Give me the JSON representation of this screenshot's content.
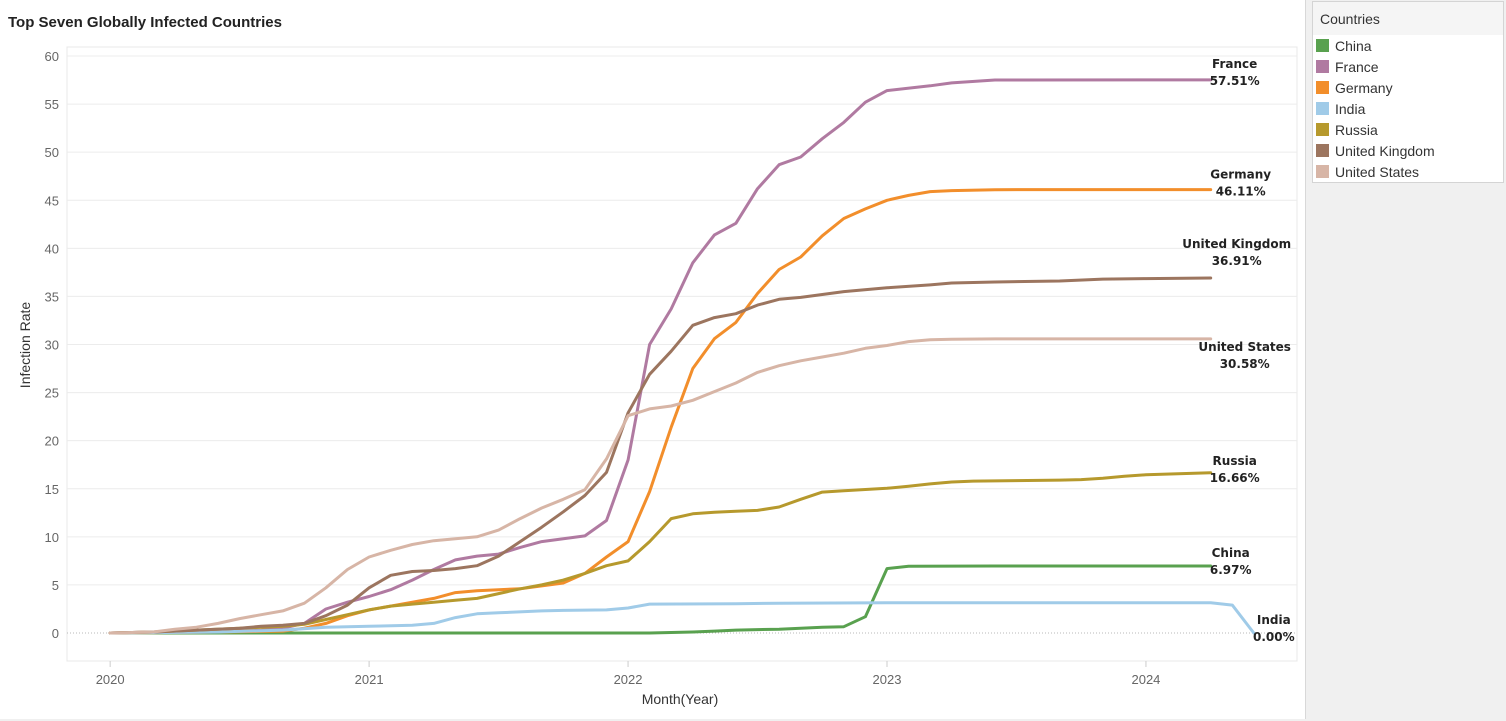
{
  "chart_data": {
    "type": "line",
    "title": "Top Seven Globally Infected Countries",
    "xlabel": "Month(Year)",
    "ylabel": "Infection Rate",
    "ylim": [
      0,
      60
    ],
    "yticks": [
      0,
      5,
      10,
      15,
      20,
      25,
      30,
      35,
      40,
      45,
      50,
      55,
      60
    ],
    "xticks": [
      "2020",
      "2021",
      "2022",
      "2023",
      "2024"
    ],
    "xlim": [
      "2019-11",
      "2024-08"
    ],
    "grid": "horizontal",
    "legend_position": "right",
    "legend_title": "Countries",
    "series": [
      {
        "name": "China",
        "color": "#59a14f",
        "end_label": "China",
        "end_value": "6.97%",
        "points": [
          [
            "2020-01",
            0
          ],
          [
            "2020-06",
            0
          ],
          [
            "2021-01",
            0
          ],
          [
            "2021-06",
            0
          ],
          [
            "2022-01",
            0
          ],
          [
            "2022-02",
            0
          ],
          [
            "2022-03",
            0.05
          ],
          [
            "2022-04",
            0.1
          ],
          [
            "2022-05",
            0.2
          ],
          [
            "2022-06",
            0.3
          ],
          [
            "2022-07",
            0.35
          ],
          [
            "2022-08",
            0.4
          ],
          [
            "2022-09",
            0.5
          ],
          [
            "2022-10",
            0.6
          ],
          [
            "2022-11",
            0.65
          ],
          [
            "2022-12",
            1.7
          ],
          [
            "2023-01",
            6.7
          ],
          [
            "2023-02",
            6.95
          ],
          [
            "2023-06",
            6.97
          ],
          [
            "2024-01",
            6.97
          ],
          [
            "2024-04",
            6.97
          ]
        ]
      },
      {
        "name": "France",
        "color": "#b07aa1",
        "end_label": "France",
        "end_value": "57.51%",
        "points": [
          [
            "2020-01",
            0
          ],
          [
            "2020-03",
            0.1
          ],
          [
            "2020-05",
            0.2
          ],
          [
            "2020-08",
            0.3
          ],
          [
            "2020-09",
            0.5
          ],
          [
            "2020-10",
            1
          ],
          [
            "2020-11",
            2.5
          ],
          [
            "2020-12",
            3.2
          ],
          [
            "2021-01",
            3.8
          ],
          [
            "2021-02",
            4.5
          ],
          [
            "2021-03",
            5.5
          ],
          [
            "2021-04",
            6.6
          ],
          [
            "2021-05",
            7.6
          ],
          [
            "2021-06",
            8
          ],
          [
            "2021-07",
            8.2
          ],
          [
            "2021-08",
            8.9
          ],
          [
            "2021-09",
            9.5
          ],
          [
            "2021-10",
            9.8
          ],
          [
            "2021-11",
            10.1
          ],
          [
            "2021-12",
            11.7
          ],
          [
            "2022-01",
            18
          ],
          [
            "2022-02",
            30
          ],
          [
            "2022-03",
            33.7
          ],
          [
            "2022-04",
            38.5
          ],
          [
            "2022-05",
            41.4
          ],
          [
            "2022-06",
            42.6
          ],
          [
            "2022-07",
            46.2
          ],
          [
            "2022-08",
            48.7
          ],
          [
            "2022-09",
            49.5
          ],
          [
            "2022-10",
            51.4
          ],
          [
            "2022-11",
            53.1
          ],
          [
            "2022-12",
            55.2
          ],
          [
            "2023-01",
            56.4
          ],
          [
            "2023-03",
            56.9
          ],
          [
            "2023-04",
            57.2
          ],
          [
            "2023-06",
            57.5
          ],
          [
            "2024-01",
            57.51
          ],
          [
            "2024-04",
            57.51
          ]
        ]
      },
      {
        "name": "Germany",
        "color": "#f28e2b",
        "end_label": "Germany",
        "end_value": "46.11%",
        "points": [
          [
            "2020-01",
            0
          ],
          [
            "2020-06",
            0.1
          ],
          [
            "2020-09",
            0.2
          ],
          [
            "2020-10",
            0.5
          ],
          [
            "2020-11",
            1
          ],
          [
            "2020-12",
            1.8
          ],
          [
            "2021-01",
            2.4
          ],
          [
            "2021-02",
            2.8
          ],
          [
            "2021-03",
            3.2
          ],
          [
            "2021-04",
            3.6
          ],
          [
            "2021-05",
            4.2
          ],
          [
            "2021-06",
            4.4
          ],
          [
            "2021-07",
            4.5
          ],
          [
            "2021-08",
            4.6
          ],
          [
            "2021-09",
            4.9
          ],
          [
            "2021-10",
            5.2
          ],
          [
            "2021-11",
            6.2
          ],
          [
            "2021-12",
            7.9
          ],
          [
            "2022-01",
            9.5
          ],
          [
            "2022-02",
            14.7
          ],
          [
            "2022-03",
            21.4
          ],
          [
            "2022-04",
            27.5
          ],
          [
            "2022-05",
            30.6
          ],
          [
            "2022-06",
            32.3
          ],
          [
            "2022-07",
            35.3
          ],
          [
            "2022-08",
            37.8
          ],
          [
            "2022-09",
            39.1
          ],
          [
            "2022-10",
            41.3
          ],
          [
            "2022-11",
            43.1
          ],
          [
            "2022-12",
            44.1
          ],
          [
            "2023-01",
            45
          ],
          [
            "2023-02",
            45.5
          ],
          [
            "2023-03",
            45.9
          ],
          [
            "2023-04",
            46
          ],
          [
            "2023-06",
            46.1
          ],
          [
            "2024-01",
            46.11
          ],
          [
            "2024-04",
            46.11
          ]
        ]
      },
      {
        "name": "India",
        "color": "#a0cbe8",
        "end_label": "India",
        "end_value": "0.00%",
        "points": [
          [
            "2020-01",
            0
          ],
          [
            "2020-06",
            0.1
          ],
          [
            "2020-09",
            0.3
          ],
          [
            "2020-11",
            0.6
          ],
          [
            "2021-01",
            0.7
          ],
          [
            "2021-03",
            0.8
          ],
          [
            "2021-04",
            1
          ],
          [
            "2021-05",
            1.6
          ],
          [
            "2021-06",
            2
          ],
          [
            "2021-07",
            2.1
          ],
          [
            "2021-09",
            2.3
          ],
          [
            "2021-10",
            2.35
          ],
          [
            "2021-12",
            2.4
          ],
          [
            "2022-01",
            2.6
          ],
          [
            "2022-02",
            3
          ],
          [
            "2022-06",
            3.05
          ],
          [
            "2022-08",
            3.1
          ],
          [
            "2023-01",
            3.15
          ],
          [
            "2024-01",
            3.15
          ],
          [
            "2024-04",
            3.15
          ],
          [
            "2024-05",
            2.9
          ],
          [
            "2024-06",
            0
          ]
        ]
      },
      {
        "name": "Russia",
        "color": "#b6992d",
        "end_label": "Russia",
        "end_value": "16.66%",
        "points": [
          [
            "2020-01",
            0
          ],
          [
            "2020-03",
            0.1
          ],
          [
            "2020-05",
            0.3
          ],
          [
            "2020-07",
            0.5
          ],
          [
            "2020-09",
            0.7
          ],
          [
            "2020-10",
            0.9
          ],
          [
            "2020-11",
            1.4
          ],
          [
            "2020-12",
            1.9
          ],
          [
            "2021-01",
            2.4
          ],
          [
            "2021-02",
            2.8
          ],
          [
            "2021-03",
            3
          ],
          [
            "2021-04",
            3.2
          ],
          [
            "2021-05",
            3.4
          ],
          [
            "2021-06",
            3.6
          ],
          [
            "2021-07",
            4.1
          ],
          [
            "2021-08",
            4.6
          ],
          [
            "2021-09",
            5
          ],
          [
            "2021-10",
            5.5
          ],
          [
            "2021-11",
            6.2
          ],
          [
            "2021-12",
            7
          ],
          [
            "2022-01",
            7.5
          ],
          [
            "2022-02",
            9.5
          ],
          [
            "2022-03",
            11.9
          ],
          [
            "2022-04",
            12.4
          ],
          [
            "2022-05",
            12.55
          ],
          [
            "2022-06",
            12.65
          ],
          [
            "2022-07",
            12.75
          ],
          [
            "2022-08",
            13.1
          ],
          [
            "2022-09",
            13.9
          ],
          [
            "2022-10",
            14.65
          ],
          [
            "2022-11",
            14.8
          ],
          [
            "2023-01",
            15.05
          ],
          [
            "2023-02",
            15.25
          ],
          [
            "2023-03",
            15.5
          ],
          [
            "2023-04",
            15.7
          ],
          [
            "2023-05",
            15.8
          ],
          [
            "2023-07",
            15.85
          ],
          [
            "2023-09",
            15.9
          ],
          [
            "2023-10",
            15.95
          ],
          [
            "2023-11",
            16.1
          ],
          [
            "2023-12",
            16.3
          ],
          [
            "2024-01",
            16.45
          ],
          [
            "2024-04",
            16.66
          ]
        ]
      },
      {
        "name": "United Kingdom",
        "color": "#9c755f",
        "end_label": "United Kingdom",
        "end_value": "36.91%",
        "points": [
          [
            "2020-01",
            0
          ],
          [
            "2020-03",
            0.1
          ],
          [
            "2020-05",
            0.3
          ],
          [
            "2020-07",
            0.5
          ],
          [
            "2020-08",
            0.7
          ],
          [
            "2020-09",
            0.8
          ],
          [
            "2020-10",
            1
          ],
          [
            "2020-11",
            1.8
          ],
          [
            "2020-12",
            2.9
          ],
          [
            "2021-01",
            4.7
          ],
          [
            "2021-02",
            6
          ],
          [
            "2021-03",
            6.4
          ],
          [
            "2021-04",
            6.5
          ],
          [
            "2021-05",
            6.7
          ],
          [
            "2021-06",
            7
          ],
          [
            "2021-07",
            8
          ],
          [
            "2021-08",
            9.5
          ],
          [
            "2021-09",
            11
          ],
          [
            "2021-10",
            12.6
          ],
          [
            "2021-11",
            14.3
          ],
          [
            "2021-12",
            16.7
          ],
          [
            "2022-01",
            22.9
          ],
          [
            "2022-02",
            26.9
          ],
          [
            "2022-03",
            29.3
          ],
          [
            "2022-04",
            32
          ],
          [
            "2022-05",
            32.8
          ],
          [
            "2022-06",
            33.2
          ],
          [
            "2022-07",
            34.1
          ],
          [
            "2022-08",
            34.7
          ],
          [
            "2022-09",
            34.9
          ],
          [
            "2022-10",
            35.2
          ],
          [
            "2022-11",
            35.5
          ],
          [
            "2023-01",
            35.9
          ],
          [
            "2023-03",
            36.2
          ],
          [
            "2023-04",
            36.4
          ],
          [
            "2023-06",
            36.5
          ],
          [
            "2023-09",
            36.6
          ],
          [
            "2023-11",
            36.8
          ],
          [
            "2024-01",
            36.85
          ],
          [
            "2024-04",
            36.91
          ]
        ]
      },
      {
        "name": "United States",
        "color": "#d7b5a6",
        "end_label": "United States",
        "end_value": "30.58%",
        "points": [
          [
            "2020-01",
            0
          ],
          [
            "2020-03",
            0.1
          ],
          [
            "2020-04",
            0.4
          ],
          [
            "2020-05",
            0.6
          ],
          [
            "2020-06",
            1
          ],
          [
            "2020-07",
            1.5
          ],
          [
            "2020-08",
            1.9
          ],
          [
            "2020-09",
            2.3
          ],
          [
            "2020-10",
            3.1
          ],
          [
            "2020-11",
            4.7
          ],
          [
            "2020-12",
            6.6
          ],
          [
            "2021-01",
            7.9
          ],
          [
            "2021-02",
            8.6
          ],
          [
            "2021-03",
            9.2
          ],
          [
            "2021-04",
            9.6
          ],
          [
            "2021-05",
            9.8
          ],
          [
            "2021-06",
            10
          ],
          [
            "2021-07",
            10.7
          ],
          [
            "2021-08",
            11.9
          ],
          [
            "2021-09",
            13
          ],
          [
            "2021-10",
            13.9
          ],
          [
            "2021-11",
            14.9
          ],
          [
            "2021-12",
            18.1
          ],
          [
            "2022-01",
            22.6
          ],
          [
            "2022-02",
            23.3
          ],
          [
            "2022-03",
            23.6
          ],
          [
            "2022-04",
            24.2
          ],
          [
            "2022-05",
            25.1
          ],
          [
            "2022-06",
            26
          ],
          [
            "2022-07",
            27.1
          ],
          [
            "2022-08",
            27.8
          ],
          [
            "2022-09",
            28.3
          ],
          [
            "2022-10",
            28.7
          ],
          [
            "2022-11",
            29.1
          ],
          [
            "2022-12",
            29.6
          ],
          [
            "2023-01",
            29.9
          ],
          [
            "2023-02",
            30.3
          ],
          [
            "2023-03",
            30.5
          ],
          [
            "2023-04",
            30.55
          ],
          [
            "2023-06",
            30.58
          ],
          [
            "2024-01",
            30.58
          ],
          [
            "2024-04",
            30.58
          ]
        ]
      }
    ]
  }
}
